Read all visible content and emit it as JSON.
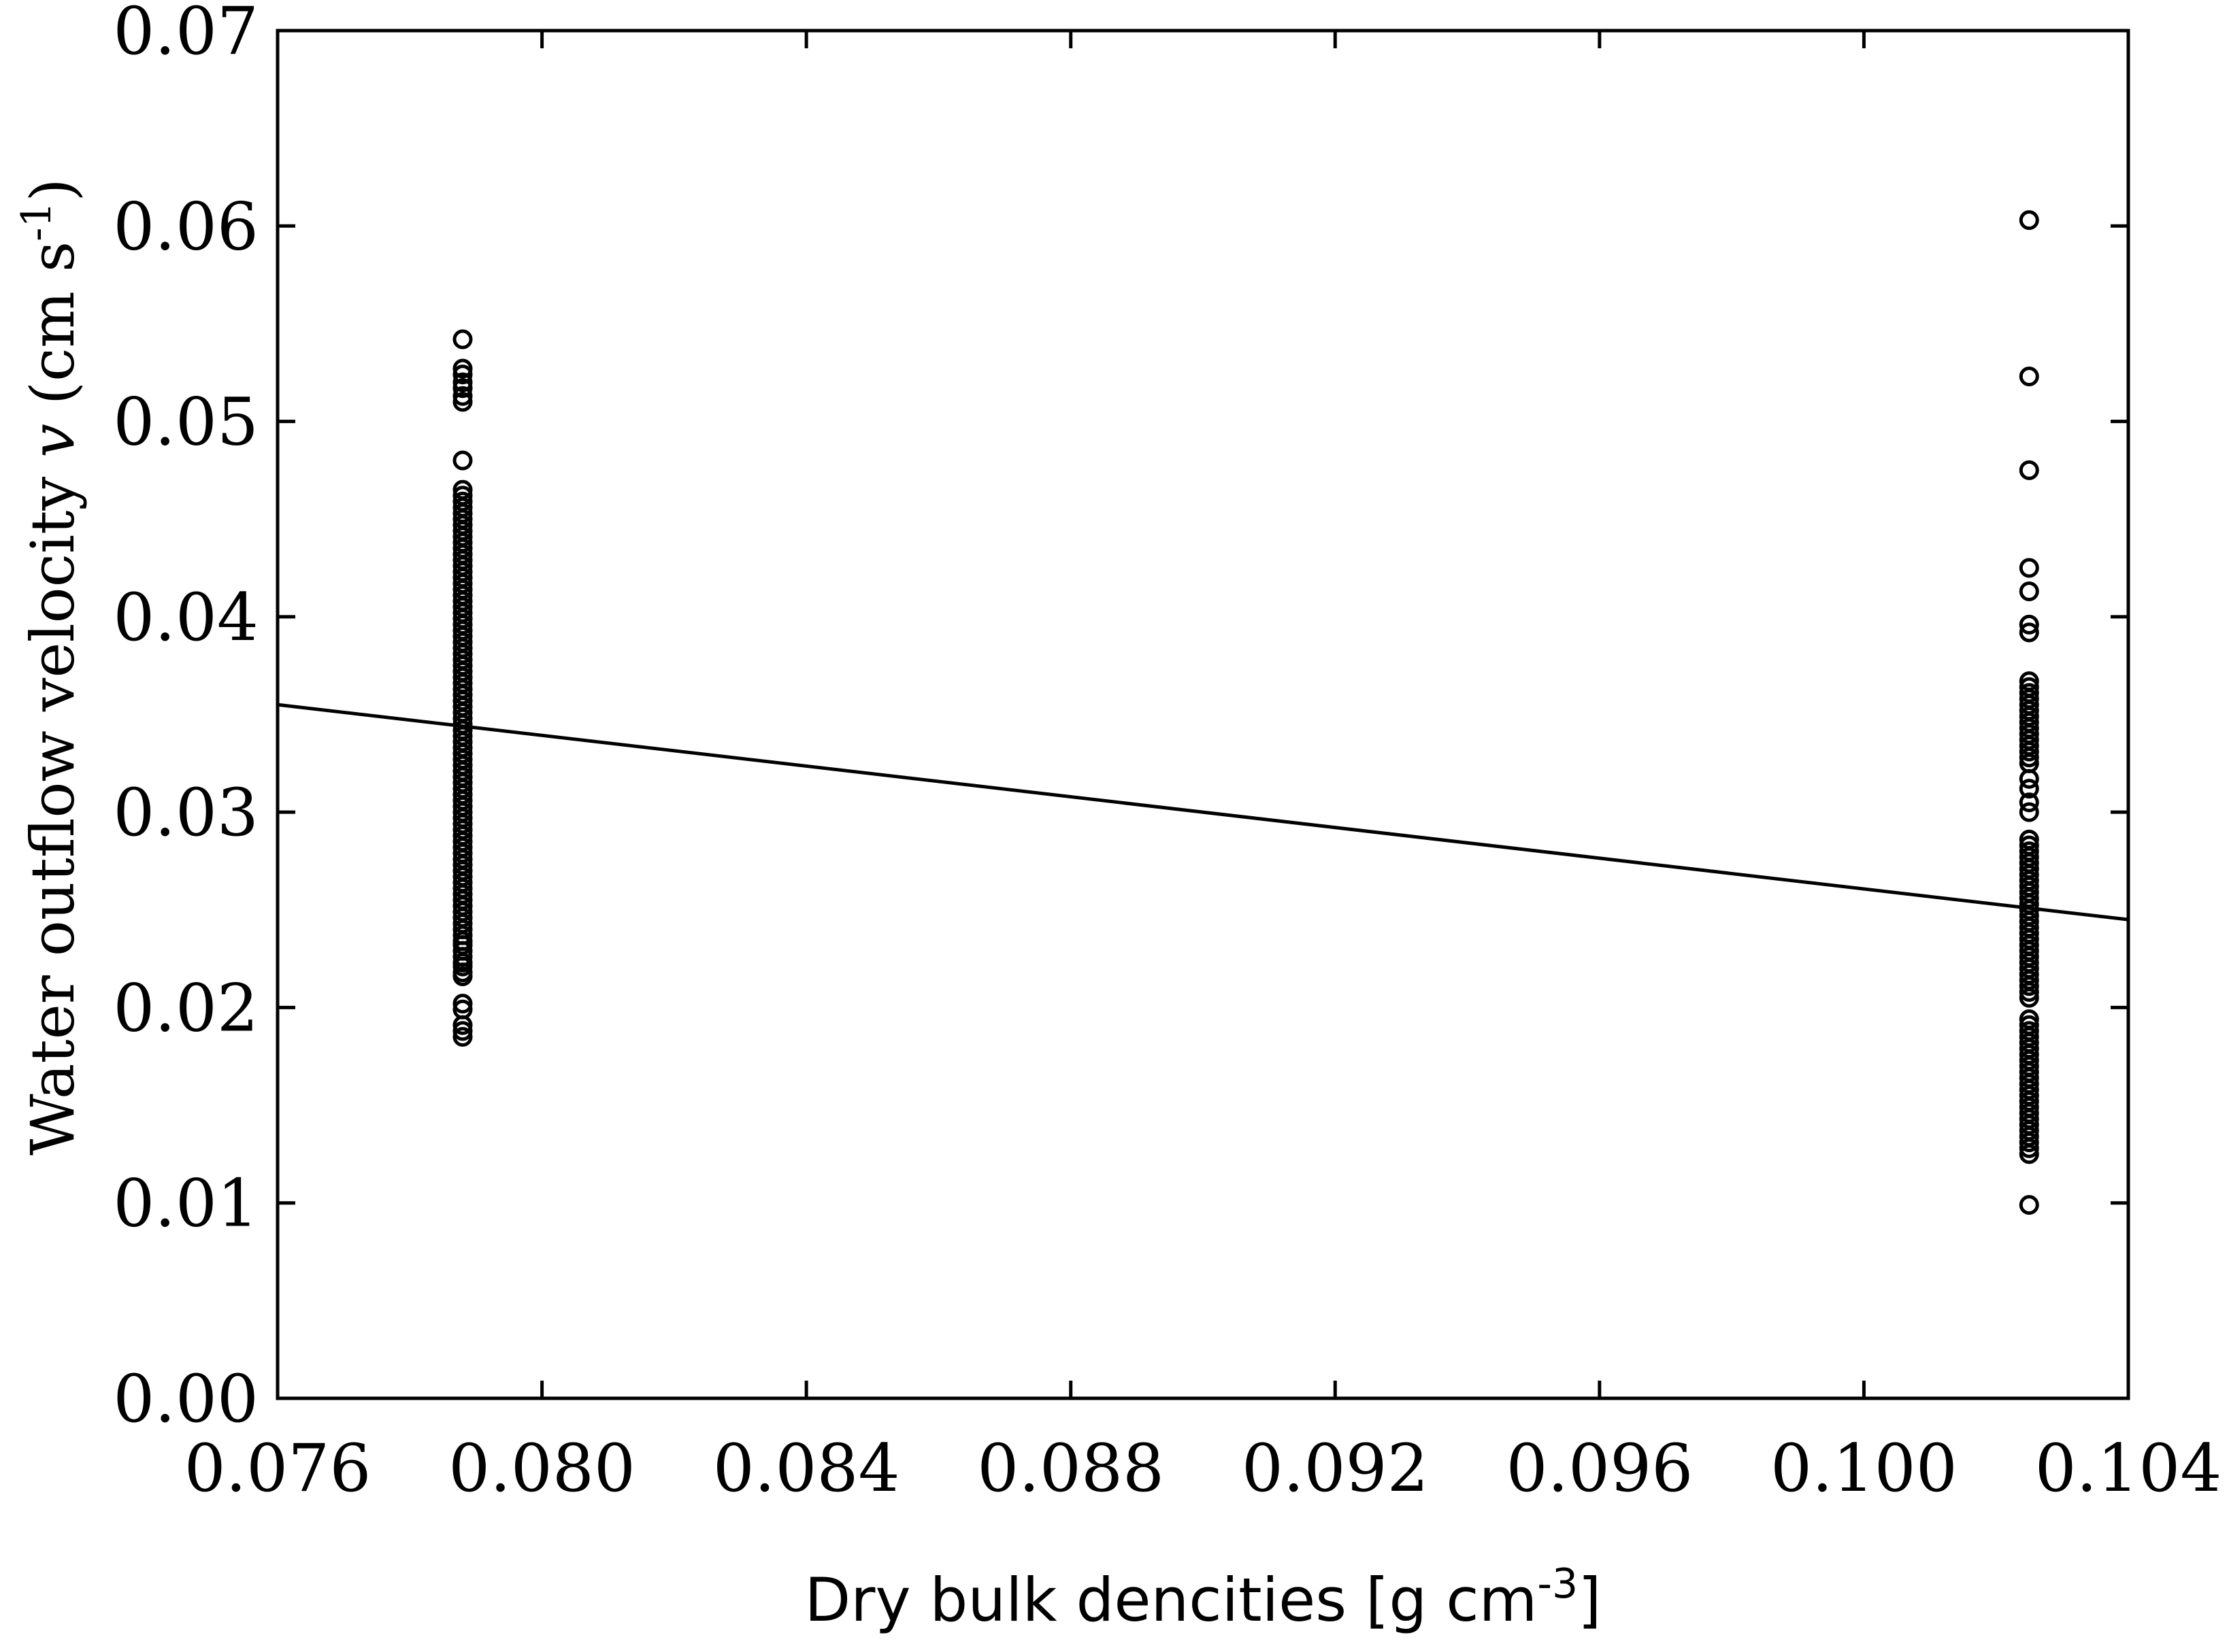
{
  "chart_data": {
    "type": "scatter",
    "title": "",
    "xlabel": {
      "text": "Dry bulk dencities [g  cm",
      "superscript": "-3",
      "suffix": "]"
    },
    "ylabel": {
      "text": "Water outflow velocity ",
      "italic_symbol": "v",
      "unit": " (cm s",
      "superscript": "-1",
      "suffix": ")"
    },
    "xlim": [
      0.076,
      0.104
    ],
    "ylim": [
      0.0,
      0.07
    ],
    "x_ticks": [
      "0.076",
      "0.080",
      "0.084",
      "0.088",
      "0.092",
      "0.096",
      "0.100",
      "0.104"
    ],
    "y_ticks": [
      "0.00",
      "0.01",
      "0.02",
      "0.03",
      "0.04",
      "0.05",
      "0.06",
      "0.07"
    ],
    "grid": false,
    "legend": "none",
    "marker": "open-circle",
    "series": [
      {
        "x": 0.0788,
        "y": [
          0.0185,
          0.0188,
          0.0191,
          0.0199,
          0.0202,
          0.0216,
          0.0218,
          0.0221,
          0.0223,
          0.0226,
          0.0229,
          0.0232,
          0.0234,
          0.0237,
          0.024,
          0.0243,
          0.0246,
          0.0249,
          0.0252,
          0.0255,
          0.0258,
          0.0261,
          0.0264,
          0.0267,
          0.027,
          0.0273,
          0.0276,
          0.0279,
          0.0282,
          0.0285,
          0.0288,
          0.0291,
          0.0294,
          0.0297,
          0.03,
          0.0303,
          0.0306,
          0.0309,
          0.0312,
          0.0315,
          0.0318,
          0.0321,
          0.0324,
          0.0327,
          0.033,
          0.0333,
          0.0336,
          0.0339,
          0.0342,
          0.0345,
          0.0348,
          0.0351,
          0.0354,
          0.0357,
          0.036,
          0.0363,
          0.0366,
          0.0369,
          0.0372,
          0.0375,
          0.0378,
          0.0381,
          0.0384,
          0.0387,
          0.039,
          0.0393,
          0.0396,
          0.0399,
          0.0402,
          0.0405,
          0.0408,
          0.0411,
          0.0414,
          0.0417,
          0.042,
          0.0423,
          0.0426,
          0.0429,
          0.0432,
          0.0435,
          0.0438,
          0.0441,
          0.0444,
          0.0447,
          0.045,
          0.0453,
          0.0456,
          0.0459,
          0.0462,
          0.0465,
          0.048,
          0.051,
          0.0513,
          0.0517,
          0.052,
          0.0524,
          0.0527,
          0.0542
        ]
      },
      {
        "x": 0.1025,
        "y": [
          0.0099,
          0.0125,
          0.0128,
          0.0131,
          0.0134,
          0.0137,
          0.014,
          0.0143,
          0.0146,
          0.0149,
          0.0152,
          0.0155,
          0.0158,
          0.0161,
          0.0164,
          0.0167,
          0.017,
          0.0173,
          0.0176,
          0.0179,
          0.0182,
          0.0185,
          0.0188,
          0.0191,
          0.0194,
          0.0205,
          0.0208,
          0.0211,
          0.0214,
          0.0217,
          0.022,
          0.0223,
          0.0226,
          0.0229,
          0.0232,
          0.0235,
          0.0238,
          0.0241,
          0.0244,
          0.0247,
          0.025,
          0.0253,
          0.0256,
          0.0259,
          0.0262,
          0.0265,
          0.0268,
          0.0271,
          0.0274,
          0.0277,
          0.028,
          0.0283,
          0.0286,
          0.03,
          0.0305,
          0.0312,
          0.0317,
          0.0325,
          0.0328,
          0.0331,
          0.0334,
          0.0337,
          0.034,
          0.0343,
          0.0346,
          0.0349,
          0.0352,
          0.0355,
          0.0358,
          0.0361,
          0.0364,
          0.0367,
          0.0392,
          0.0396,
          0.0413,
          0.0425,
          0.0475,
          0.0523,
          0.0603
        ]
      }
    ],
    "trendline": {
      "x": [
        0.076,
        0.104
      ],
      "y": [
        0.0355,
        0.0245
      ]
    }
  }
}
